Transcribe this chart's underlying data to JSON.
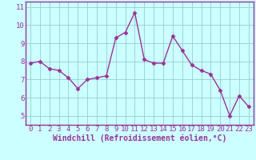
{
  "x": [
    0,
    1,
    2,
    3,
    4,
    5,
    6,
    7,
    8,
    9,
    10,
    11,
    12,
    13,
    14,
    15,
    16,
    17,
    18,
    19,
    20,
    21,
    22,
    23
  ],
  "y": [
    7.9,
    8.0,
    7.6,
    7.5,
    7.1,
    6.5,
    7.0,
    7.1,
    7.2,
    9.3,
    9.6,
    10.7,
    8.1,
    7.9,
    7.9,
    9.4,
    8.6,
    7.8,
    7.5,
    7.3,
    6.4,
    5.0,
    6.1,
    5.5
  ],
  "line_color": "#993399",
  "marker": "D",
  "markersize": 2.5,
  "linewidth": 1.0,
  "bg_color": "#ccffff",
  "grid_color": "#99cccc",
  "xlabel": "Windchill (Refroidissement éolien,°C)",
  "xlabel_fontsize": 7,
  "tick_fontsize": 6.5,
  "ylim": [
    4.5,
    11.3
  ],
  "xlim": [
    -0.5,
    23.5
  ],
  "yticks": [
    5,
    6,
    7,
    8,
    9,
    10,
    11
  ],
  "xticks": [
    0,
    1,
    2,
    3,
    4,
    5,
    6,
    7,
    8,
    9,
    10,
    11,
    12,
    13,
    14,
    15,
    16,
    17,
    18,
    19,
    20,
    21,
    22,
    23
  ]
}
